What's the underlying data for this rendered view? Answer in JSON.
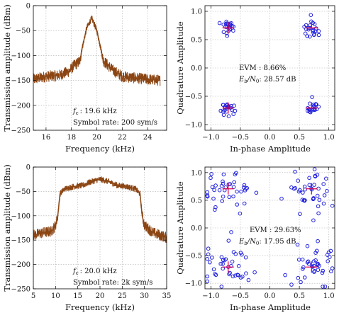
{
  "chart_data": [
    {
      "id": "spectrum-top",
      "type": "line",
      "xlabel": "Frequency (kHz)",
      "ylabel": "Transmission amplitude (dBm)",
      "xlim": [
        15,
        25.5
      ],
      "ylim": [
        -250,
        0
      ],
      "xticks": [
        16,
        18,
        20,
        22,
        24
      ],
      "yticks": [
        -250,
        -200,
        -150,
        -100,
        -50,
        0
      ],
      "grid": true,
      "color": "#8b4513",
      "annotations": {
        "fc_label": "f",
        "fc_sub": "c",
        "fc_value": ": 19.6 kHz",
        "symbol_rate": "Symbol rate: 200 sym/s"
      },
      "x": [
        15.0,
        16.0,
        17.0,
        17.8,
        18.2,
        18.5,
        18.7,
        18.8,
        19.2,
        19.6,
        20.0,
        20.35,
        20.5,
        20.8,
        21.3,
        22.0,
        23.0,
        24.0,
        25.0
      ],
      "y": [
        -148,
        -142,
        -140,
        -132,
        -120,
        -115,
        -110,
        -90,
        -45,
        -25,
        -50,
        -90,
        -110,
        -118,
        -130,
        -142,
        -145,
        -148,
        -150
      ]
    },
    {
      "id": "constellation-top",
      "type": "scatter",
      "xlabel": "In-phase Amplitude",
      "ylabel": "Quadrature Amplitude",
      "xlim": [
        -1.1,
        1.1
      ],
      "ylim": [
        -1.1,
        1.1
      ],
      "xticks": [
        -1.0,
        -0.5,
        0.0,
        0.5,
        1.0
      ],
      "yticks": [
        -1.0,
        -0.5,
        0.0,
        0.5,
        1.0
      ],
      "grid": true,
      "ideal_points": [
        [
          0.707,
          0.707
        ],
        [
          -0.707,
          0.707
        ],
        [
          -0.707,
          -0.707
        ],
        [
          0.707,
          -0.707
        ]
      ],
      "spread": 0.06,
      "points_per_cluster": 22,
      "annotations": {
        "evm": "EVM : 8.66%",
        "ebn0_prefix": "E",
        "ebn0_sub1": "b",
        "ebn0_mid": "/N",
        "ebn0_sub2": "0",
        "ebn0_value": ": 28.57 dB"
      }
    },
    {
      "id": "spectrum-bottom",
      "type": "line",
      "xlabel": "Frequency (kHz)",
      "ylabel": "Transmission amplitude (dBm)",
      "xlim": [
        5,
        35
      ],
      "ylim": [
        -250,
        0
      ],
      "xticks": [
        5,
        10,
        15,
        20,
        25,
        30,
        35
      ],
      "yticks": [
        -250,
        -200,
        -150,
        -100,
        -50,
        0
      ],
      "grid": true,
      "color": "#8b4513",
      "annotations": {
        "fc_label": "f",
        "fc_sub": "c",
        "fc_value": ": 20.0 kHz",
        "symbol_rate": "Symbol rate: 2k sym/s"
      },
      "x": [
        5.0,
        7.0,
        9.0,
        10.0,
        10.5,
        11.0,
        12.0,
        14.0,
        16.0,
        18.0,
        20.0,
        22.0,
        24.0,
        26.0,
        28.0,
        29.0,
        29.5,
        30.0,
        32.0,
        35.0
      ],
      "y": [
        -140,
        -135,
        -132,
        -120,
        -100,
        -55,
        -45,
        -40,
        -38,
        -30,
        -25,
        -30,
        -38,
        -40,
        -45,
        -55,
        -100,
        -120,
        -135,
        -145
      ]
    },
    {
      "id": "constellation-bottom",
      "type": "scatter",
      "xlabel": "In-phase Amplitude",
      "ylabel": "Quadrature Amplitude",
      "xlim": [
        -1.1,
        1.1
      ],
      "ylim": [
        -1.1,
        1.1
      ],
      "xticks": [
        -1.0,
        -0.5,
        0.0,
        0.5,
        1.0
      ],
      "yticks": [
        -1.0,
        -0.5,
        0.0,
        0.5,
        1.0
      ],
      "grid": true,
      "ideal_points": [
        [
          0.707,
          0.707
        ],
        [
          -0.707,
          0.707
        ],
        [
          -0.707,
          -0.707
        ],
        [
          0.707,
          -0.707
        ]
      ],
      "spread": 0.2,
      "points_per_cluster": 40,
      "annotations": {
        "evm": "EVM : 29.63%",
        "ebn0_prefix": "E",
        "ebn0_sub1": "b",
        "ebn0_mid": "/N",
        "ebn0_sub2": "0",
        "ebn0_value": ": 17.95 dB"
      }
    }
  ]
}
